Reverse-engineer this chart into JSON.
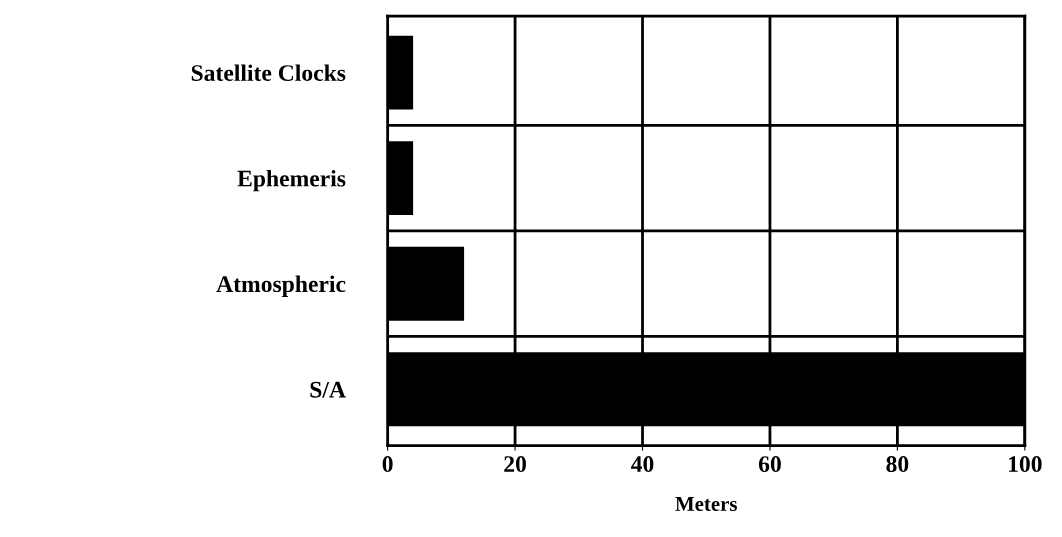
{
  "chart_data": {
    "type": "bar",
    "orientation": "horizontal",
    "xlabel": "Meters",
    "categories": [
      "Satellite Clocks",
      "Ephemeris",
      "Atmospheric",
      "S/A"
    ],
    "values": [
      4,
      4,
      12,
      100
    ],
    "color": "#000000",
    "xlim": [
      0,
      100
    ],
    "xticks": [
      0,
      20,
      40,
      60,
      80,
      100
    ],
    "grid": true
  }
}
